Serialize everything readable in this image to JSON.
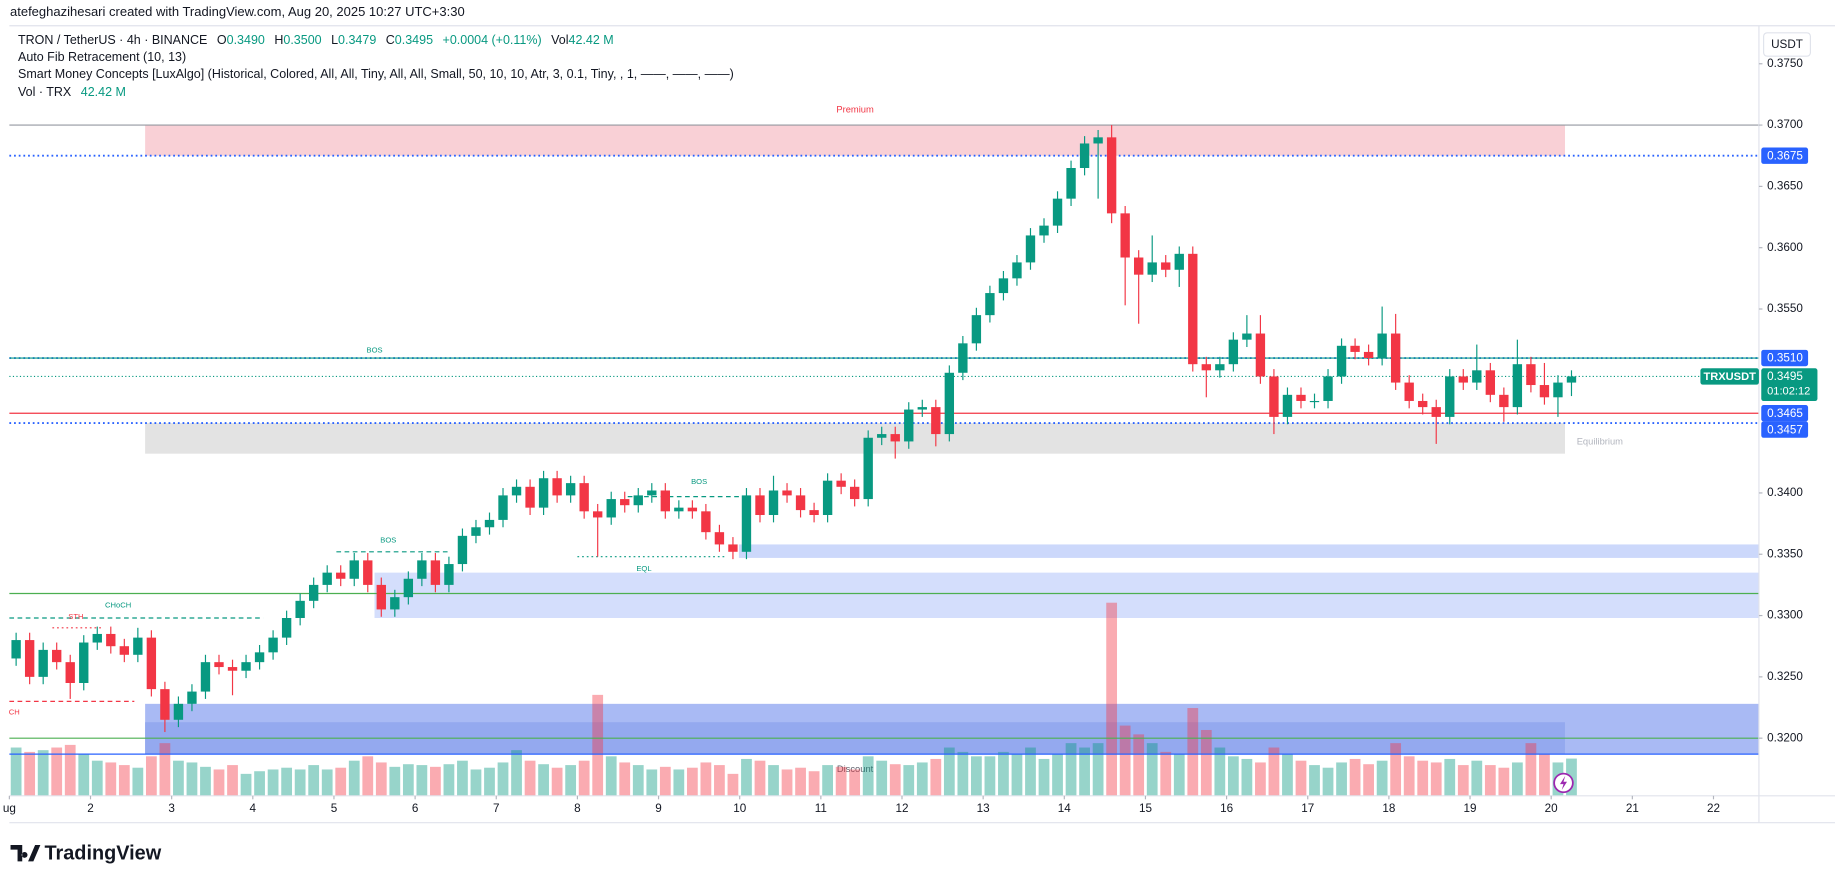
{
  "header": {
    "credit": "atefeghazihesari created with TradingView.com, Aug 20, 2025 10:27 UTC+3:30",
    "symbol": "TRON / TetherUS · 4h · BINANCE",
    "ohlc": [
      {
        "label": "O",
        "value": "0.3490"
      },
      {
        "label": "H",
        "value": "0.3500"
      },
      {
        "label": "L",
        "value": "0.3479"
      },
      {
        "label": "C",
        "value": "0.3495"
      }
    ],
    "change": "+0.0004 (+0.11%)",
    "vol_label": "Vol",
    "vol_value": "42.42 M",
    "indicators": [
      "Auto Fib Retracement (10, 13)",
      "Smart Money Concepts [LuxAlgo] (Historical, Colored, All, All, Tiny, All, All, Small, 50, 10, 10, Atr, 3, 0.1, Tiny, , 1, ——, ——, ——)"
    ],
    "vol_indicator": "Vol · TRX",
    "vol_indicator_value": "42.42 M"
  },
  "currency": "USDT",
  "watermark": "TradingView",
  "chart_data": {
    "type": "candlestick",
    "x": [
      1.0833,
      1.25,
      1.4167,
      1.5833,
      1.75,
      1.9167,
      2.0833,
      2.25,
      2.4167,
      2.5833,
      2.75,
      2.9167,
      3.0833,
      3.25,
      3.4167,
      3.5833,
      3.75,
      3.9167,
      4.0833,
      4.25,
      4.4167,
      4.5833,
      4.75,
      4.9167,
      5.0833,
      5.25,
      5.4167,
      5.5833,
      5.75,
      5.9167,
      6.0833,
      6.25,
      6.4167,
      6.5833,
      6.75,
      6.9167,
      7.0833,
      7.25,
      7.4167,
      7.5833,
      7.75,
      7.9167,
      8.0833,
      8.25,
      8.4167,
      8.5833,
      8.75,
      8.9167,
      9.0833,
      9.25,
      9.4167,
      9.5833,
      9.75,
      9.9167,
      10.0833,
      10.25,
      10.4167,
      10.5833,
      10.75,
      10.9167,
      11.0833,
      11.25,
      11.4167,
      11.5833,
      11.75,
      11.9167,
      12.0833,
      12.25,
      12.4167,
      12.5833,
      12.75,
      12.9167,
      13.0833,
      13.25,
      13.4167,
      13.5833,
      13.75,
      13.9167,
      14.0833,
      14.25,
      14.4167,
      14.5833,
      14.75,
      14.9167,
      15.0833,
      15.25,
      15.4167,
      15.5833,
      15.75,
      15.9167,
      16.0833,
      16.25,
      16.4167,
      16.5833,
      16.75,
      16.9167,
      17.0833,
      17.25,
      17.4167,
      17.5833,
      17.75,
      17.9167,
      18.0833,
      18.25,
      18.4167,
      18.5833,
      18.75,
      18.9167,
      19.0833,
      19.25,
      19.4167,
      19.5833,
      19.75,
      19.9167,
      20.0833,
      20.25
    ],
    "open": [
      0.3265,
      0.328,
      0.325,
      0.3272,
      0.3262,
      0.3245,
      0.3278,
      0.3285,
      0.3275,
      0.3268,
      0.3282,
      0.324,
      0.3215,
      0.3228,
      0.3238,
      0.3262,
      0.3258,
      0.3255,
      0.3262,
      0.327,
      0.3282,
      0.3298,
      0.3312,
      0.3325,
      0.3335,
      0.333,
      0.3345,
      0.3325,
      0.3305,
      0.3315,
      0.333,
      0.3345,
      0.3325,
      0.3342,
      0.3365,
      0.3372,
      0.3378,
      0.3398,
      0.3405,
      0.3388,
      0.3412,
      0.3398,
      0.3408,
      0.3385,
      0.338,
      0.3395,
      0.339,
      0.3398,
      0.3402,
      0.3385,
      0.3388,
      0.3385,
      0.3368,
      0.3358,
      0.3352,
      0.3398,
      0.3382,
      0.3402,
      0.3398,
      0.3386,
      0.3382,
      0.341,
      0.3405,
      0.3395,
      0.3445,
      0.3448,
      0.3442,
      0.3468,
      0.347,
      0.3448,
      0.3498,
      0.3522,
      0.3545,
      0.3563,
      0.3575,
      0.3588,
      0.361,
      0.3618,
      0.364,
      0.3665,
      0.3685,
      0.369,
      0.3628,
      0.3592,
      0.3578,
      0.3588,
      0.3582,
      0.3595,
      0.3505,
      0.35,
      0.3505,
      0.3525,
      0.353,
      0.3495,
      0.3462,
      0.348,
      0.3475,
      0.3475,
      0.3495,
      0.352,
      0.3515,
      0.351,
      0.353,
      0.349,
      0.3475,
      0.347,
      0.3462,
      0.3495,
      0.349,
      0.35,
      0.348,
      0.347,
      0.3505,
      0.3488,
      0.3478,
      0.349
    ],
    "high": [
      0.3286,
      0.3286,
      0.3278,
      0.3278,
      0.3268,
      0.3284,
      0.3291,
      0.3291,
      0.3281,
      0.329,
      0.3288,
      0.3246,
      0.3234,
      0.3244,
      0.3268,
      0.3268,
      0.3264,
      0.3268,
      0.3276,
      0.3288,
      0.3304,
      0.3318,
      0.3331,
      0.3341,
      0.3341,
      0.3351,
      0.3351,
      0.3331,
      0.3321,
      0.3336,
      0.3351,
      0.3351,
      0.3348,
      0.3371,
      0.3378,
      0.3384,
      0.3404,
      0.3411,
      0.3411,
      0.3418,
      0.3418,
      0.3414,
      0.3414,
      0.3391,
      0.3401,
      0.3401,
      0.3404,
      0.3408,
      0.3408,
      0.3394,
      0.3394,
      0.3391,
      0.3374,
      0.3364,
      0.3404,
      0.3404,
      0.3414,
      0.3408,
      0.3404,
      0.3392,
      0.3416,
      0.3416,
      0.3411,
      0.3451,
      0.3454,
      0.3454,
      0.3474,
      0.3476,
      0.3476,
      0.3504,
      0.3528,
      0.3551,
      0.3569,
      0.3581,
      0.3594,
      0.3616,
      0.3624,
      0.3646,
      0.3671,
      0.3691,
      0.3696,
      0.37,
      0.3634,
      0.3598,
      0.361,
      0.3594,
      0.3601,
      0.3601,
      0.3511,
      0.3511,
      0.3531,
      0.3545,
      0.3545,
      0.3501,
      0.3486,
      0.3486,
      0.3481,
      0.3501,
      0.3526,
      0.3526,
      0.3521,
      0.3552,
      0.3546,
      0.3496,
      0.3481,
      0.3476,
      0.3501,
      0.3501,
      0.3521,
      0.3506,
      0.3486,
      0.3525,
      0.3511,
      0.3506,
      0.3496,
      0.35
    ],
    "low": [
      0.3259,
      0.3244,
      0.3244,
      0.3256,
      0.3232,
      0.3239,
      0.3272,
      0.3269,
      0.3262,
      0.3262,
      0.3234,
      0.3205,
      0.3209,
      0.3222,
      0.3232,
      0.3252,
      0.3235,
      0.3249,
      0.3256,
      0.3264,
      0.3276,
      0.3292,
      0.3306,
      0.3319,
      0.3324,
      0.3324,
      0.3319,
      0.3299,
      0.3299,
      0.3309,
      0.3324,
      0.3319,
      0.3319,
      0.3336,
      0.3359,
      0.3366,
      0.3372,
      0.3392,
      0.3382,
      0.3382,
      0.3392,
      0.3392,
      0.3379,
      0.3348,
      0.3374,
      0.3384,
      0.3384,
      0.3392,
      0.3379,
      0.3379,
      0.3379,
      0.3362,
      0.3352,
      0.3346,
      0.3346,
      0.3376,
      0.3376,
      0.3392,
      0.338,
      0.3376,
      0.3376,
      0.3399,
      0.3389,
      0.3389,
      0.3439,
      0.3428,
      0.3436,
      0.3462,
      0.3438,
      0.3442,
      0.3492,
      0.3516,
      0.3539,
      0.3557,
      0.3569,
      0.3582,
      0.3604,
      0.3612,
      0.3634,
      0.3659,
      0.364,
      0.362,
      0.3553,
      0.3538,
      0.3572,
      0.3576,
      0.3568,
      0.3499,
      0.3478,
      0.3494,
      0.3499,
      0.3519,
      0.3489,
      0.3448,
      0.3456,
      0.3469,
      0.3469,
      0.3469,
      0.3489,
      0.3509,
      0.3504,
      0.3504,
      0.3484,
      0.3469,
      0.3464,
      0.344,
      0.3456,
      0.3484,
      0.3484,
      0.3474,
      0.3458,
      0.3464,
      0.3482,
      0.3472,
      0.3462,
      0.3479
    ],
    "close": [
      0.328,
      0.325,
      0.3272,
      0.3262,
      0.3245,
      0.3278,
      0.3285,
      0.3275,
      0.3268,
      0.3282,
      0.324,
      0.3215,
      0.3228,
      0.3238,
      0.3262,
      0.3258,
      0.3255,
      0.3262,
      0.327,
      0.3282,
      0.3298,
      0.3312,
      0.3325,
      0.3335,
      0.333,
      0.3345,
      0.3325,
      0.3305,
      0.3315,
      0.333,
      0.3345,
      0.3325,
      0.3342,
      0.3365,
      0.3372,
      0.3378,
      0.3398,
      0.3405,
      0.3388,
      0.3412,
      0.3398,
      0.3408,
      0.3385,
      0.338,
      0.3395,
      0.339,
      0.3398,
      0.3402,
      0.3385,
      0.3388,
      0.3385,
      0.3368,
      0.3358,
      0.3352,
      0.3398,
      0.3382,
      0.3402,
      0.3398,
      0.3386,
      0.3382,
      0.341,
      0.3405,
      0.3395,
      0.3445,
      0.3448,
      0.3442,
      0.3468,
      0.347,
      0.3448,
      0.3498,
      0.3522,
      0.3545,
      0.3563,
      0.3575,
      0.3588,
      0.361,
      0.3618,
      0.364,
      0.3665,
      0.3685,
      0.369,
      0.3628,
      0.3592,
      0.3578,
      0.3588,
      0.3582,
      0.3595,
      0.3505,
      0.35,
      0.3505,
      0.3525,
      0.353,
      0.3495,
      0.3462,
      0.348,
      0.3475,
      0.3475,
      0.3495,
      0.352,
      0.3515,
      0.351,
      0.353,
      0.349,
      0.3475,
      0.347,
      0.3462,
      0.3495,
      0.349,
      0.35,
      0.348,
      0.347,
      0.3505,
      0.3488,
      0.3478,
      0.349,
      0.3495
    ],
    "volume": [
      55,
      50,
      52,
      55,
      58,
      48,
      40,
      38,
      35,
      32,
      45,
      60,
      40,
      38,
      33,
      30,
      35,
      25,
      28,
      30,
      32,
      30,
      35,
      30,
      32,
      40,
      45,
      38,
      33,
      36,
      35,
      33,
      36,
      40,
      30,
      32,
      38,
      52,
      40,
      36,
      32,
      35,
      40,
      115,
      45,
      38,
      35,
      30,
      33,
      30,
      32,
      38,
      35,
      25,
      42,
      40,
      35,
      30,
      32,
      28,
      35,
      33,
      30,
      45,
      40,
      36,
      35,
      38,
      42,
      55,
      50,
      45,
      45,
      50,
      48,
      55,
      42,
      48,
      60,
      55,
      60,
      220,
      80,
      70,
      60,
      50,
      48,
      100,
      75,
      55,
      45,
      42,
      38,
      55,
      48,
      40,
      35,
      32,
      38,
      42,
      36,
      40,
      60,
      45,
      40,
      38,
      42,
      35,
      40,
      35,
      32,
      38,
      60,
      48,
      38,
      42.42
    ],
    "volume_ylim": [
      0,
      300
    ],
    "up_color": "#089981",
    "down_color": "#f23645",
    "xlim": [
      1,
      22.56
    ],
    "xticks": [
      {
        "value": 1,
        "label": "ug"
      },
      2,
      3,
      4,
      5,
      6,
      7,
      8,
      9,
      10,
      11,
      12,
      13,
      14,
      15,
      16,
      17,
      18,
      19,
      20,
      21,
      22
    ],
    "ylim": [
      0.3153,
      0.3781
    ],
    "yticks": [
      {
        "value": 0.375,
        "label": "0.3750"
      },
      {
        "value": 0.37,
        "label": "0.3700"
      },
      {
        "value": 0.365,
        "label": "0.3650"
      },
      {
        "value": 0.36,
        "label": "0.3600"
      },
      {
        "value": 0.355,
        "label": "0.3550"
      },
      {
        "value": 0.34,
        "label": "0.3400"
      },
      {
        "value": 0.335,
        "label": "0.3350"
      },
      {
        "value": 0.33,
        "label": "0.3300"
      },
      {
        "value": 0.325,
        "label": "0.3250"
      },
      {
        "value": 0.32,
        "label": "0.3200"
      }
    ],
    "grid": false,
    "zones": [
      {
        "from": 2.673,
        "to": 20.17,
        "top": 0.37,
        "bottom": 0.3675,
        "color": "#f9d0d6",
        "label": "Premium",
        "label_at": "top",
        "label_color": "#f23645"
      },
      {
        "from": 2.673,
        "to": 20.17,
        "top": 0.3457,
        "bottom": 0.3432,
        "color": "#e3e3e3",
        "label": "Equilibrium",
        "label_at": "right",
        "label_color": "#b2b5be"
      },
      {
        "from": 9.99,
        "to": 22.56,
        "top": 0.3358,
        "bottom": 0.3347,
        "color": "#ccd8fb"
      },
      {
        "from": 5.5,
        "to": 22.56,
        "top": 0.3335,
        "bottom": 0.3298,
        "color": "#d4defc"
      },
      {
        "from": 2.673,
        "to": 22.56,
        "top": 0.3228,
        "bottom": 0.3187,
        "color": "#a9baf4"
      },
      {
        "from": 2.673,
        "to": 20.17,
        "top": 0.3213,
        "bottom": 0.3187,
        "color": "#94a9ef",
        "label": "Discount",
        "label_at": "bottom",
        "label_color": "#5d606b"
      }
    ],
    "levels": [
      {
        "value": 0.37,
        "color": "#9598a1",
        "dash": "solid"
      },
      {
        "value": 0.3675,
        "color": "#2962ff",
        "dash": "dotted",
        "tag": true
      },
      {
        "value": 0.351,
        "label": "0.3510",
        "color": "#2962ff",
        "dash": "dotted",
        "tag": true
      },
      {
        "value": 0.351,
        "color": "#089981",
        "dash": "solid"
      },
      {
        "value": 0.3465,
        "color": "#f23645",
        "dash": "solid",
        "tag": true,
        "tag_color": "#2962ff"
      },
      {
        "value": 0.3457,
        "color": "#2962ff",
        "dash": "dotted",
        "tag": true
      },
      {
        "value": 0.3318,
        "color": "#4caf50",
        "dash": "solid"
      },
      {
        "value": 0.32,
        "color": "#4caf50",
        "dash": "solid"
      },
      {
        "value": 0.3187,
        "color": "#2962ff",
        "dash": "solid"
      }
    ],
    "annotations": [
      {
        "text": "BOS",
        "x": 5.5,
        "y": 0.3516,
        "color": "#089981"
      },
      {
        "text": "BOS",
        "x": 5.67,
        "y": 0.3361,
        "color": "#089981",
        "line": {
          "from": 5.03,
          "to": 6.4,
          "value": 0.3352,
          "dash": "dashed"
        }
      },
      {
        "text": "BOS",
        "x": 9.5,
        "y": 0.3409,
        "color": "#089981",
        "line": {
          "from": 8.62,
          "to": 10.0,
          "value": 0.3397,
          "dash": "dashed"
        }
      },
      {
        "text": "EQL",
        "x": 8.82,
        "y": 0.3338,
        "color": "#089981",
        "line": {
          "from": 8.0,
          "to": 9.83,
          "value": 0.3348,
          "dash": "dotted"
        }
      },
      {
        "text": "CHoCH",
        "x": 2.34,
        "y": 0.3308,
        "color": "#089981",
        "line": {
          "from": 1.0,
          "to": 4.13,
          "value": 0.3298,
          "dash": "dashed"
        }
      },
      {
        "text": "STH",
        "x": 1.82,
        "y": 0.3299,
        "color": "#f23645",
        "line": {
          "from": 1.53,
          "to": 2.15,
          "value": 0.329,
          "dash": "dotted"
        }
      },
      {
        "text": "CH",
        "x": 1.06,
        "y": 0.3221,
        "color": "#f23645",
        "line": {
          "from": 1.0,
          "to": 2.54,
          "value": 0.323,
          "dash": "dashed"
        }
      }
    ],
    "last_price": {
      "symbol": "TRXUSDT",
      "value": 0.3495,
      "countdown": "01:02:12",
      "color": "#089981"
    }
  }
}
